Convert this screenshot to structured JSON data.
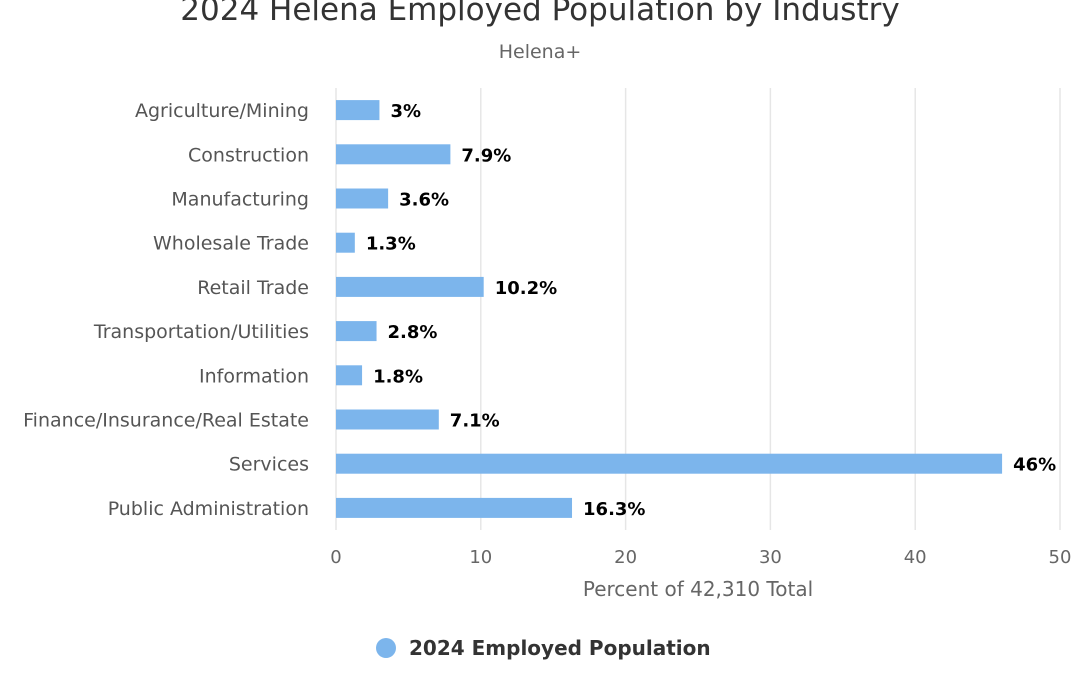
{
  "chart_data": {
    "type": "bar",
    "orientation": "horizontal",
    "title": "2024 Helena Employed Population by Industry",
    "subtitle": "Helena+",
    "categories": [
      "Agriculture/Mining",
      "Construction",
      "Manufacturing",
      "Wholesale Trade",
      "Retail Trade",
      "Transportation/Utilities",
      "Information",
      "Finance/Insurance/Real Estate",
      "Services",
      "Public Administration"
    ],
    "series": [
      {
        "name": "2024 Employed Population",
        "values": [
          3,
          7.9,
          3.6,
          1.3,
          10.2,
          2.8,
          1.8,
          7.1,
          46,
          16.3
        ],
        "data_labels": [
          "3%",
          "7.9%",
          "3.6%",
          "1.3%",
          "10.2%",
          "2.8%",
          "1.8%",
          "7.1%",
          "46%",
          "16.3%"
        ],
        "color": "#7cb5ec"
      }
    ],
    "xlabel": "Percent of 42,310 Total",
    "ylabel": "",
    "xlim": [
      0,
      50
    ],
    "ticks": [
      "0",
      "10",
      "20",
      "30",
      "40",
      "50"
    ],
    "grid": true,
    "legend": "bottom-center"
  }
}
